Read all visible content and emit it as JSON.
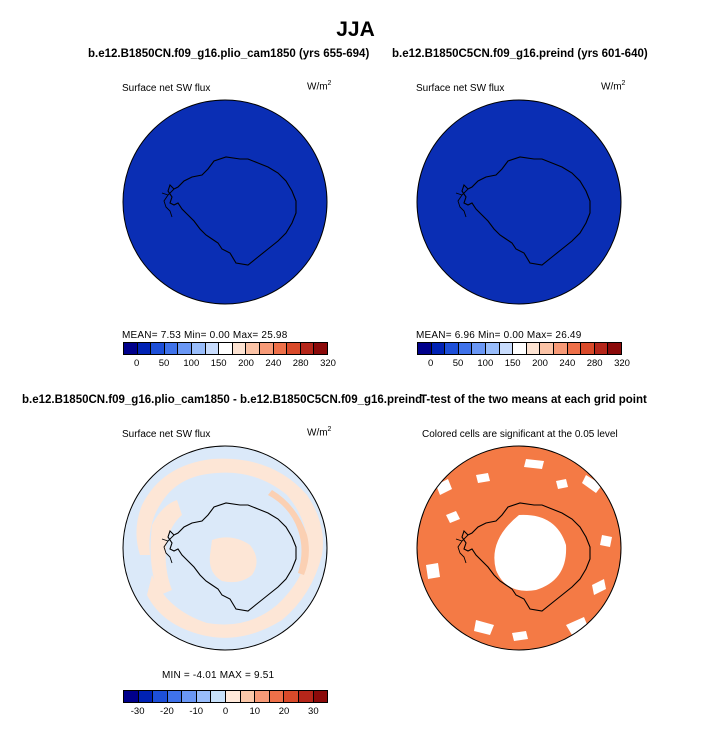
{
  "figure": {
    "title": "JJA"
  },
  "panels": {
    "p1": {
      "title": "b.e12.B1850CN.f09_g16.plio_cam1850 (yrs 655-694)",
      "left_label": "Surface net SW flux",
      "units_base": "W/m",
      "units_exp": "2",
      "stats": "MEAN=   7.53   Min=    0.00   Max=  25.98"
    },
    "p2": {
      "title": "b.e12.B1850C5CN.f09_g16.preind (yrs 601-640)",
      "left_label": "Surface net SW flux",
      "units_base": "W/m",
      "units_exp": "2",
      "stats": "MEAN=   6.96   Min=    0.00   Max=  26.49"
    },
    "p3": {
      "title": "b.e12.B1850CN.f09_g16.plio_cam1850 - b.e12.B1850C5CN.f09_g16.preind",
      "left_label": "Surface net SW flux",
      "units_base": "W/m",
      "units_exp": "2",
      "stats": "MIN =   -4.01  MAX =     9.51"
    },
    "p4": {
      "title": "T-test of the two means at each grid point",
      "subtitle": "Colored cells are significant at the 0.05 level"
    }
  },
  "colorbars": {
    "abs": {
      "colors": [
        "#00008b",
        "#0022b4",
        "#1d4fd8",
        "#3f72ea",
        "#6a97f5",
        "#99bdfb",
        "#c8dcfd",
        "#ffffff",
        "#fde3d2",
        "#fbc3a6",
        "#f79a77",
        "#ee7049",
        "#d94a2a",
        "#b5261a",
        "#8b0a0a"
      ],
      "ticks": [
        "0",
        "50",
        "100",
        "150",
        "200",
        "240",
        "280",
        "320"
      ]
    },
    "diff": {
      "colors": [
        "#00008b",
        "#0022b4",
        "#1d4fd8",
        "#3f72ea",
        "#6a97f5",
        "#99bdfb",
        "#c8e1fa",
        "#ffe9da",
        "#fbc8a9",
        "#f79a77",
        "#ee7049",
        "#d94a2a",
        "#b5261a",
        "#8b0a0a"
      ],
      "ticks": [
        "-30",
        "-20",
        "-10",
        "0",
        "10",
        "20",
        "30"
      ]
    }
  },
  "map_colors": {
    "ocean_low": "#0a2eb4",
    "diff_base": "#dbe9f9",
    "diff_pos1": "#fde6d6",
    "diff_pos2": "#fbd0b3",
    "signif": "#f47a45"
  }
}
